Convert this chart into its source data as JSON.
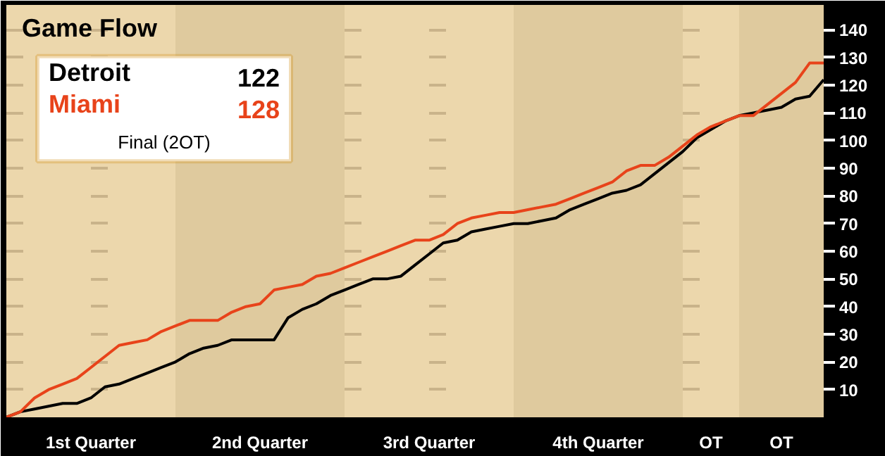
{
  "chart_data": {
    "type": "line",
    "title": "Game Flow",
    "categories": [
      null,
      null,
      null,
      null,
      null,
      null,
      "1st Quarter",
      null,
      null,
      null,
      null,
      null,
      null,
      null,
      null,
      null,
      null,
      null,
      "2nd Quarter",
      null,
      null,
      null,
      null,
      null,
      null,
      null,
      null,
      null,
      null,
      null,
      "3rd Quarter",
      null,
      null,
      null,
      null,
      null,
      null,
      null,
      null,
      null,
      null,
      null,
      "4th Quarter",
      null,
      null,
      null,
      null,
      null,
      null,
      null,
      "OT",
      null,
      null,
      null,
      null,
      "OT",
      null,
      null,
      null
    ],
    "ylim": [
      0,
      149
    ],
    "yticks": [
      10,
      20,
      30,
      40,
      50,
      60,
      70,
      80,
      90,
      100,
      110,
      120,
      130,
      140
    ],
    "grid": "y",
    "legend": "top left",
    "line_style": "solid",
    "annotations": [
      "122",
      "128",
      "Final (2OT)"
    ],
    "series": [
      {
        "name": "Detroit",
        "color": "#000000",
        "values": [
          0,
          2,
          3,
          4,
          5,
          5,
          7,
          11,
          12,
          14,
          16,
          18,
          20,
          23,
          25,
          26,
          28,
          28,
          28,
          28,
          36,
          39,
          41,
          44,
          46,
          48,
          50,
          50,
          51,
          55,
          59,
          63,
          64,
          67,
          68,
          69,
          70,
          70,
          71,
          72,
          75,
          77,
          79,
          81,
          82,
          84,
          88,
          92,
          96,
          101,
          104,
          107,
          109,
          110,
          111,
          112,
          115,
          116,
          122
        ]
      },
      {
        "name": "Miami",
        "color": "#e8431a",
        "values": [
          0,
          2,
          7,
          10,
          12,
          14,
          18,
          22,
          26,
          27,
          28,
          31,
          33,
          35,
          35,
          35,
          38,
          40,
          41,
          46,
          47,
          48,
          51,
          52,
          54,
          56,
          58,
          60,
          62,
          64,
          64,
          66,
          70,
          72,
          73,
          74,
          74,
          75,
          76,
          77,
          79,
          81,
          83,
          85,
          89,
          91,
          91,
          94,
          98,
          102,
          105,
          107,
          109,
          109,
          113,
          117,
          121,
          128,
          128
        ]
      }
    ]
  }
}
